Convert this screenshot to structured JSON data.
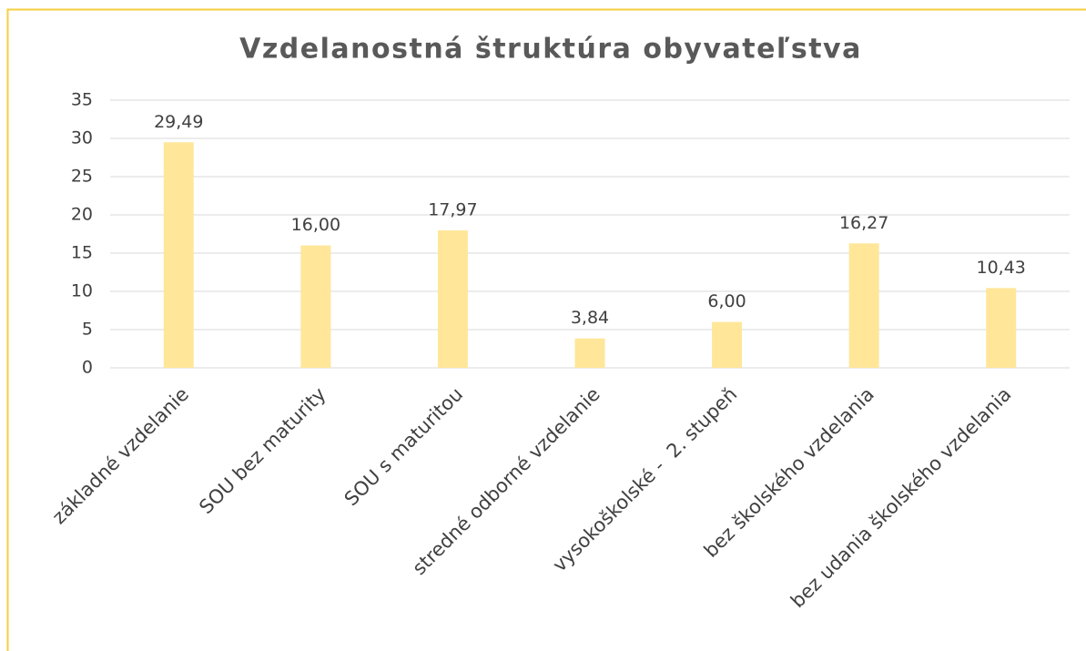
{
  "chart_data": {
    "type": "bar",
    "title": "Vzdelanostná štruktúra obyvateľstva",
    "categories": [
      "základné vzdelanie",
      "SOU bez maturity",
      "SOU s maturitou",
      "stredné odborné vzdelanie",
      "vysokoškolské -  2. stupeň",
      "bez školského vzdelania",
      "bez udania školského vzdelania"
    ],
    "values": [
      29.49,
      16.0,
      17.97,
      3.84,
      6.0,
      16.27,
      10.43
    ],
    "value_labels": [
      "29,49",
      "16,00",
      "17,97",
      "3,84",
      "6,00",
      "16,27",
      "10,43"
    ],
    "color": "#ffe699",
    "ylim": [
      0,
      35
    ],
    "yticks": [
      0,
      5,
      10,
      15,
      20,
      25,
      30,
      35
    ],
    "grid": true
  }
}
